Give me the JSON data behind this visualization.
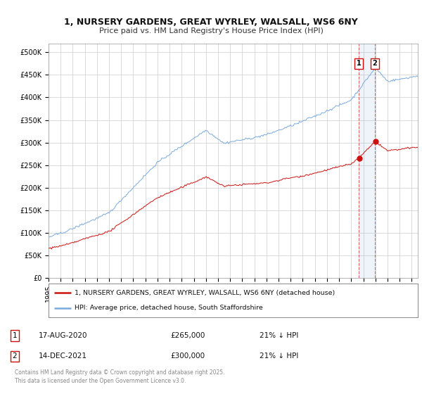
{
  "title_line1": "1, NURSERY GARDENS, GREAT WYRLEY, WALSALL, WS6 6NY",
  "title_line2": "Price paid vs. HM Land Registry's House Price Index (HPI)",
  "ylabel_ticks": [
    "£0",
    "£50K",
    "£100K",
    "£150K",
    "£200K",
    "£250K",
    "£300K",
    "£350K",
    "£400K",
    "£450K",
    "£500K"
  ],
  "ytick_values": [
    0,
    50000,
    100000,
    150000,
    200000,
    250000,
    300000,
    350000,
    400000,
    450000,
    500000
  ],
  "ylim": [
    0,
    520000
  ],
  "xlim_start": 1995.0,
  "xlim_end": 2025.5,
  "hpi_color": "#7aaadc",
  "price_color": "#cc1111",
  "transaction1_date": "17-AUG-2020",
  "transaction1_price": 265000,
  "transaction1_label": "21% ↓ HPI",
  "transaction2_date": "14-DEC-2021",
  "transaction2_price": 300000,
  "transaction2_label": "21% ↓ HPI",
  "transaction1_x": 2020.63,
  "transaction2_x": 2021.96,
  "legend_line1": "1, NURSERY GARDENS, GREAT WYRLEY, WALSALL, WS6 6NY (detached house)",
  "legend_line2": "HPI: Average price, detached house, South Staffordshire",
  "footnote": "Contains HM Land Registry data © Crown copyright and database right 2025.\nThis data is licensed under the Open Government Licence v3.0.",
  "background_color": "#ffffff",
  "grid_color": "#cccccc"
}
